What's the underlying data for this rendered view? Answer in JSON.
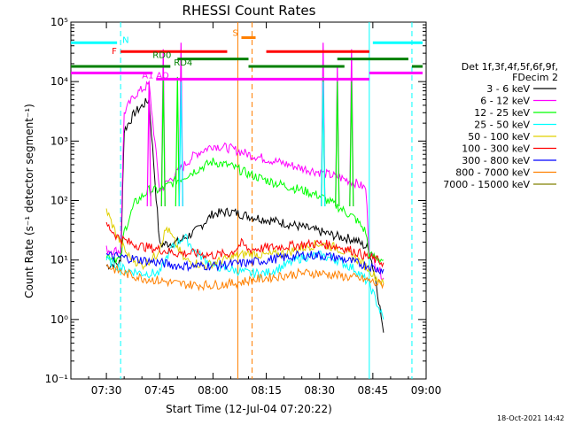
{
  "chart_data": {
    "type": "line",
    "title": "RHESSI Count Rates",
    "xlabel": "Start Time (12-Jul-04 07:20:22)",
    "ylabel": "Count Rate (s⁻¹ detector segment⁻¹)",
    "y_scale": "log",
    "ylim": [
      0.1,
      100000
    ],
    "xlim": [
      "07:20",
      "09:00"
    ],
    "x_ticks": [
      "07:30",
      "07:45",
      "08:00",
      "08:15",
      "08:30",
      "08:45",
      "09:00"
    ],
    "y_ticks": [
      "10⁻¹",
      "10⁰",
      "10¹",
      "10²",
      "10³",
      "10⁴",
      "10⁵"
    ],
    "legend_header": [
      "Det 1f,3f,4f,5f,6f,9f,",
      "FDecim 2"
    ],
    "legend_position": "right",
    "colors": {
      "cyan": "#00ffff",
      "red": "#ff0000",
      "green": "#008000",
      "magenta": "#ff00ff",
      "orange": "#ff8000"
    },
    "series": [
      {
        "name": "3 - 6 keV",
        "color": "#000000",
        "x": [
          "07:30",
          "07:34",
          "07:35",
          "07:38",
          "07:42",
          "07:45",
          "07:50",
          "07:55",
          "08:00",
          "08:05",
          "08:10",
          "08:15",
          "08:20",
          "08:25",
          "08:30",
          "08:35",
          "08:40",
          "08:44",
          "08:46",
          "08:48"
        ],
        "values": [
          8,
          9,
          1500,
          3000,
          5000,
          18,
          20,
          30,
          60,
          65,
          55,
          48,
          42,
          36,
          30,
          25,
          22,
          15,
          4,
          0.6
        ]
      },
      {
        "name": "6 - 12 keV",
        "color": "#ff00ff",
        "x": [
          "07:30",
          "07:34",
          "07:35",
          "07:38",
          "07:42",
          "07:45",
          "07:50",
          "07:55",
          "08:00",
          "08:05",
          "08:10",
          "08:15",
          "08:20",
          "08:25",
          "08:30",
          "08:35",
          "08:40",
          "08:43",
          "08:44",
          "08:46",
          "08:48"
        ],
        "values": [
          15,
          14,
          3000,
          6000,
          9000,
          150,
          300,
          600,
          850,
          750,
          600,
          500,
          420,
          350,
          300,
          250,
          200,
          160,
          15,
          8,
          5
        ]
      },
      {
        "name": "12 - 25 keV",
        "color": "#00ff00",
        "x": [
          "07:30",
          "07:34",
          "07:35",
          "07:38",
          "07:42",
          "07:45",
          "07:50",
          "07:55",
          "08:00",
          "08:05",
          "08:10",
          "08:15",
          "08:20",
          "08:25",
          "08:30",
          "08:35",
          "08:40",
          "08:43",
          "08:44",
          "08:48"
        ],
        "values": [
          12,
          10,
          30,
          90,
          150,
          150,
          220,
          320,
          450,
          380,
          280,
          220,
          180,
          150,
          120,
          80,
          50,
          30,
          12,
          10
        ]
      },
      {
        "name": "25 - 50 keV",
        "color": "#00ffff",
        "x": [
          "07:30",
          "07:35",
          "07:40",
          "07:45",
          "07:48",
          "07:52",
          "07:55",
          "08:00",
          "08:05",
          "08:10",
          "08:15",
          "08:20",
          "08:25",
          "08:30",
          "08:35",
          "08:40",
          "08:44",
          "08:46",
          "08:48"
        ],
        "values": [
          10,
          7,
          6,
          6,
          15,
          25,
          14,
          8,
          7,
          6,
          6,
          8,
          11,
          12,
          10,
          7,
          4,
          2,
          1
        ]
      },
      {
        "name": "50 - 100 keV",
        "color": "#e0d000",
        "x": [
          "07:30",
          "07:33",
          "07:36",
          "07:40",
          "07:44",
          "07:47",
          "07:52",
          "07:58",
          "08:05",
          "08:10",
          "08:15",
          "08:20",
          "08:25",
          "08:30",
          "08:35",
          "08:40",
          "08:44",
          "08:46",
          "08:48"
        ],
        "values": [
          70,
          25,
          12,
          8,
          12,
          35,
          10,
          8,
          11,
          13,
          12,
          13,
          16,
          19,
          16,
          11,
          7,
          5,
          4
        ]
      },
      {
        "name": "100 - 300 keV",
        "color": "#ff0000",
        "x": [
          "07:30",
          "07:33",
          "07:36",
          "07:40",
          "07:45",
          "07:50",
          "07:55",
          "08:00",
          "08:05",
          "08:08",
          "08:10",
          "08:15",
          "08:20",
          "08:25",
          "08:30",
          "08:35",
          "08:40",
          "08:44",
          "08:46",
          "08:48"
        ],
        "values": [
          40,
          25,
          20,
          17,
          15,
          13,
          13,
          12,
          13,
          19,
          15,
          16,
          17,
          18,
          19,
          17,
          14,
          11,
          10,
          9
        ]
      },
      {
        "name": "300 - 800 keV",
        "color": "#0000ff",
        "x": [
          "07:30",
          "07:35",
          "07:40",
          "07:45",
          "07:50",
          "07:55",
          "08:00",
          "08:05",
          "08:10",
          "08:15",
          "08:20",
          "08:25",
          "08:30",
          "08:35",
          "08:40",
          "08:44",
          "08:46",
          "08:48"
        ],
        "values": [
          12,
          11,
          10,
          9,
          8,
          8,
          8,
          8.5,
          9,
          10,
          11,
          12,
          12,
          11,
          9,
          8,
          7,
          7
        ]
      },
      {
        "name": "800 - 7000 keV",
        "color": "#ff8000",
        "x": [
          "07:30",
          "07:35",
          "07:40",
          "07:45",
          "07:50",
          "07:55",
          "08:00",
          "08:05",
          "08:10",
          "08:15",
          "08:20",
          "08:25",
          "08:30",
          "08:35",
          "08:40",
          "08:44",
          "08:46",
          "08:48"
        ],
        "values": [
          8,
          6,
          5,
          4.5,
          4,
          3.8,
          3.8,
          4,
          4.5,
          5,
          5.5,
          6,
          6,
          5.5,
          5,
          4.5,
          4,
          4
        ]
      },
      {
        "name": "7000 - 15000 keV",
        "color": "#808000",
        "x": [],
        "values": []
      }
    ],
    "vertical_markers": [
      {
        "x": "07:34",
        "color": "#00ffff",
        "style": "dashed"
      },
      {
        "x": "08:44",
        "color": "#00ffff",
        "style": "solid"
      },
      {
        "x": "08:56",
        "color": "#00ffff",
        "style": "dashed"
      },
      {
        "x": "08:07",
        "color": "#ff8000",
        "style": "solid"
      },
      {
        "x": "08:11",
        "color": "#ff8000",
        "style": "dashed"
      }
    ],
    "spikes": [
      {
        "x": "07:42",
        "color": "#ff00ff",
        "to": 10000
      },
      {
        "x": "07:46",
        "color": "#ff00ff",
        "to": 35000
      },
      {
        "x": "07:51",
        "color": "#ff00ff",
        "to": 45000
      },
      {
        "x": "08:31",
        "color": "#ff00ff",
        "to": 45000
      },
      {
        "x": "08:35",
        "color": "#ff00ff",
        "to": 18000
      },
      {
        "x": "08:39",
        "color": "#ff00ff",
        "to": 35000
      },
      {
        "x": "07:46",
        "color": "#00ff00",
        "to": 12000
      },
      {
        "x": "07:50",
        "color": "#00ff00",
        "to": 12000
      },
      {
        "x": "08:31",
        "color": "#00ff00",
        "to": 12000
      },
      {
        "x": "08:35",
        "color": "#00ff00",
        "to": 10000
      },
      {
        "x": "08:39",
        "color": "#00ff00",
        "to": 10000
      },
      {
        "x": "07:51",
        "color": "#00ffff",
        "to": 10000
      },
      {
        "x": "08:31",
        "color": "#00ffff",
        "to": 10000
      }
    ],
    "flag_bars": [
      {
        "label": "N",
        "color": "#00ffff",
        "y": 45000,
        "segments": [
          [
            "07:20",
            "07:33"
          ],
          [
            "08:45",
            "08:59"
          ]
        ]
      },
      {
        "label": "F",
        "color": "#ff0000",
        "y": 32000,
        "segments": [
          [
            "07:34",
            "08:04"
          ],
          [
            "08:15",
            "08:44"
          ]
        ]
      },
      {
        "label": "S",
        "color": "#ff8000",
        "y": 55000,
        "segments": [
          [
            "08:08",
            "08:12"
          ]
        ]
      },
      {
        "label": "RD0",
        "color": "#008000",
        "y": 24000,
        "segments": [
          [
            "07:50",
            "08:10"
          ],
          [
            "08:35",
            "08:55"
          ]
        ]
      },
      {
        "label": "RD4",
        "color": "#008000",
        "y": 18000,
        "segments": [
          [
            "07:20",
            "07:48"
          ],
          [
            "08:10",
            "08:37"
          ],
          [
            "08:56",
            "08:59"
          ]
        ]
      },
      {
        "label": "AO",
        "color": "#ff00ff",
        "y": 14000,
        "segments": [
          [
            "07:20",
            "07:43"
          ],
          [
            "08:44",
            "08:59"
          ]
        ]
      },
      {
        "label": "A1",
        "color": "#ff00ff",
        "y": 11000,
        "segments": [
          [
            "07:44",
            "08:44"
          ]
        ]
      }
    ],
    "timestamp": "18-Oct-2021 14:42"
  }
}
